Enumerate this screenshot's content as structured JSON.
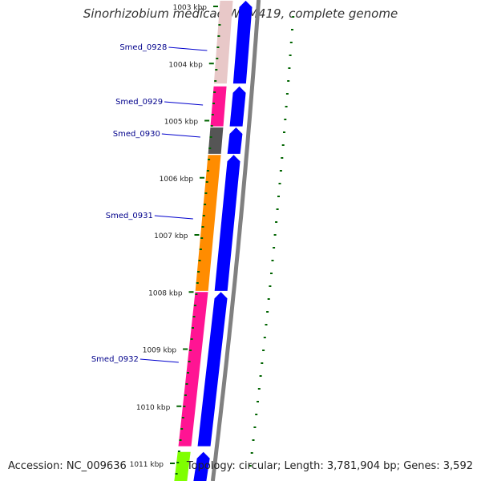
{
  "title": "Sinorhizobium medicae WSM419, complete genome",
  "footer": {
    "accession": "Accession: NC_009636",
    "topology": "Topology: circular",
    "length": "Length: 3,781,904 bp",
    "genes": "Genes: 3,592"
  },
  "scale": {
    "start_kbp": 1003,
    "end_kbp": 1011,
    "unit": "kbp",
    "ticks": [
      "1003 kbp",
      "1004 kbp",
      "1005 kbp",
      "1006 kbp",
      "1007 kbp",
      "1008 kbp",
      "1009 kbp",
      "1010 kbp",
      "1011 kbp"
    ]
  },
  "genes": [
    {
      "label": "Smed_0928",
      "strand": "+",
      "start_kbp": 1002.9,
      "end_kbp": 1004.35,
      "color_outer": "#0000ff",
      "color_inner": "#e8c8c8"
    },
    {
      "label": "Smed_0929",
      "strand": "+",
      "start_kbp": 1004.4,
      "end_kbp": 1005.1,
      "color_outer": "#0000ff",
      "color_inner": "#ff1493"
    },
    {
      "label": "Smed_0930",
      "strand": "+",
      "start_kbp": 1005.12,
      "end_kbp": 1005.58,
      "color_outer": "#0000ff",
      "color_inner": "#555555"
    },
    {
      "label": "Smed_0931",
      "strand": "+",
      "start_kbp": 1005.6,
      "end_kbp": 1007.98,
      "color_outer": "#0000ff",
      "color_inner": "#ff8c00"
    },
    {
      "label": "Smed_0932",
      "strand": "+",
      "start_kbp": 1008.0,
      "end_kbp": 1010.7,
      "color_outer": "#0000ff",
      "color_inner": "#ff1493"
    },
    {
      "label": "",
      "strand": "+",
      "start_kbp": 1010.8,
      "end_kbp": 1011.4,
      "color_outer": "#0000ff",
      "color_inner": "#7fff00"
    }
  ],
  "colors": {
    "backbone": "#808080",
    "gc_dots": "#006400",
    "label_text": "#00008b",
    "leader_line": "#0000cd",
    "tick_text": "#222222"
  }
}
